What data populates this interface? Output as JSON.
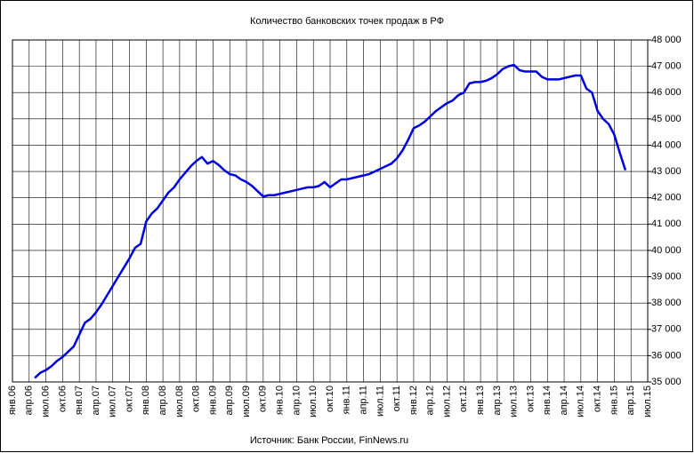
{
  "chart_data": {
    "type": "line",
    "title": "Количество банковских точек продаж в РФ",
    "source": "Источник: Банк России, FinNews.ru",
    "categories": [
      "янв.06",
      null,
      null,
      "апр.06",
      null,
      null,
      "июл.06",
      null,
      null,
      "окт.06",
      null,
      null,
      "янв.07",
      null,
      null,
      "апр.07",
      null,
      null,
      "июл.07",
      null,
      null,
      "окт.07",
      null,
      null,
      "янв.08",
      null,
      null,
      "апр.08",
      null,
      null,
      "июл.08",
      null,
      null,
      "окт.08",
      null,
      null,
      "янв.09",
      null,
      null,
      "апр.09",
      null,
      null,
      "июл.09",
      null,
      null,
      "окт.09",
      null,
      null,
      "янв.10",
      null,
      null,
      "апр.10",
      null,
      null,
      "июл.10",
      null,
      null,
      "окт.10",
      null,
      null,
      "янв.11",
      null,
      null,
      "апр.11",
      null,
      null,
      "июл.11",
      null,
      null,
      "окт.11",
      null,
      null,
      "янв.12",
      null,
      null,
      "апр.12",
      null,
      null,
      "июл.12",
      null,
      null,
      "окт.12",
      null,
      null,
      "янв.13",
      null,
      null,
      "апр.13",
      null,
      null,
      "июл.13",
      null,
      null,
      "окт.13",
      null,
      null,
      "янв.14",
      null,
      null,
      "апр.14",
      null,
      null,
      "июл.14",
      null,
      null,
      "окт.14",
      null,
      null,
      "янв.15",
      null,
      null,
      "апр.15",
      null,
      null,
      "июл.15"
    ],
    "series": [
      {
        "color": "#0000e0",
        "values": [
          null,
          null,
          null,
          null,
          35150,
          35350,
          35450,
          35600,
          35800,
          35950,
          36150,
          36350,
          36800,
          37250,
          37400,
          37650,
          37950,
          38300,
          38650,
          39000,
          39350,
          39700,
          40100,
          40250,
          41100,
          41400,
          41600,
          41900,
          42200,
          42400,
          42700,
          42950,
          43200,
          43400,
          43550,
          43300,
          43400,
          43250,
          43050,
          42900,
          42850,
          42700,
          42600,
          42450,
          42250,
          42050,
          42100,
          42100,
          42150,
          42200,
          42250,
          42300,
          42350,
          42400,
          42400,
          42450,
          42600,
          42400,
          42550,
          42700,
          42700,
          42750,
          42800,
          42850,
          42900,
          43000,
          43100,
          43200,
          43300,
          43500,
          43800,
          44200,
          44650,
          44750,
          44900,
          45100,
          45300,
          45450,
          45600,
          45700,
          45900,
          46000,
          46350,
          46400,
          46400,
          46450,
          46550,
          46700,
          46900,
          47000,
          47050,
          46850,
          46800,
          46800,
          46800,
          46600,
          46500,
          46500,
          46500,
          46550,
          46600,
          46650,
          46650,
          46150,
          46000,
          45300,
          45000,
          44800,
          44400,
          43700,
          43050,
          null,
          null,
          null,
          null
        ]
      }
    ],
    "ylim": [
      35000,
      48000
    ],
    "yticks": [
      {
        "value": 35000,
        "label": "35 000"
      },
      {
        "value": 36000,
        "label": "36 000"
      },
      {
        "value": 37000,
        "label": "37 000"
      },
      {
        "value": 38000,
        "label": "38 000"
      },
      {
        "value": 39000,
        "label": "39 000"
      },
      {
        "value": 40000,
        "label": "40 000"
      },
      {
        "value": 41000,
        "label": "41 000"
      },
      {
        "value": 42000,
        "label": "42 000"
      },
      {
        "value": 43000,
        "label": "43 000"
      },
      {
        "value": 44000,
        "label": "44 000"
      },
      {
        "value": 45000,
        "label": "45 000"
      },
      {
        "value": 46000,
        "label": "46 000"
      },
      {
        "value": 47000,
        "label": "47 000"
      },
      {
        "value": 48000,
        "label": "48 000"
      }
    ],
    "grid": true
  }
}
